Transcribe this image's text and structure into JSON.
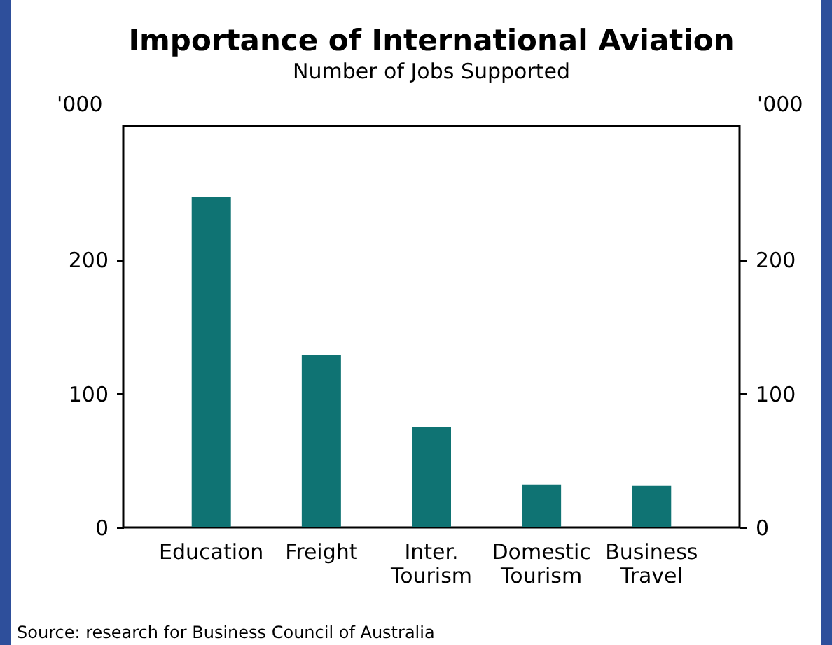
{
  "chart_data": {
    "type": "bar",
    "title": "Importance of International Aviation",
    "subtitle": "Number of Jobs Supported",
    "ylabel": "'000",
    "y2label": "'000",
    "categories": [
      "Education",
      "Freight",
      "Inter. Tourism",
      "Domestic Tourism",
      "Business Travel"
    ],
    "values": [
      247,
      129,
      75,
      32,
      31
    ],
    "color": "#0f7373",
    "ylim": [
      0,
      300
    ],
    "yticks": [
      0,
      100,
      200
    ],
    "y2lim": [
      0,
      300
    ],
    "y2ticks": [
      0,
      100,
      200
    ],
    "grid": false,
    "annotations": [
      "Source: research for Business Council of Australia"
    ]
  }
}
